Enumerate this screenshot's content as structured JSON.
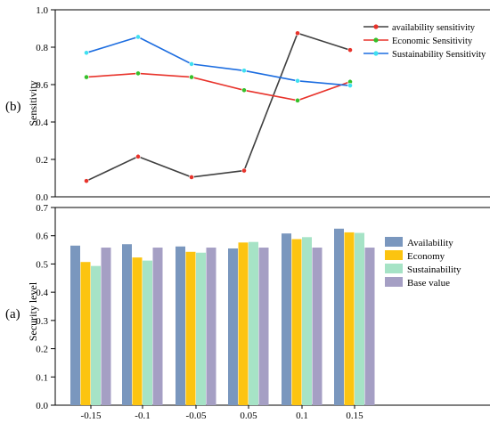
{
  "chart_data": [
    {
      "panel": "(b)",
      "type": "line",
      "ylabel": "Sensitivity",
      "ylim": [
        0,
        1.0
      ],
      "yticks": [
        "0.0",
        "0.2",
        "0.4",
        "0.6",
        "0.8",
        "1.0"
      ],
      "grid": false,
      "legend_position": "top-right",
      "series": [
        {
          "name": "availability sensitivity",
          "color": "#404040",
          "marker_color": "#e8332b",
          "values": [
            0.085,
            0.215,
            0.105,
            0.14,
            0.875,
            0.785
          ]
        },
        {
          "name": "Economic Sensitivity",
          "color": "#e8332b",
          "marker_color": "#35c02a",
          "values": [
            0.64,
            0.66,
            0.64,
            0.57,
            0.515,
            0.615
          ]
        },
        {
          "name": "Sustainability Sensitivity",
          "color": "#1c6de0",
          "marker_color": "#3fe0f0",
          "values": [
            0.77,
            0.855,
            0.71,
            0.675,
            0.62,
            0.595
          ]
        }
      ]
    },
    {
      "panel": "(a)",
      "type": "bar",
      "ylabel": "Security level",
      "ylim": [
        0,
        0.7
      ],
      "yticks": [
        "0.0",
        "0.1",
        "0.2",
        "0.3",
        "0.4",
        "0.5",
        "0.6",
        "0.7"
      ],
      "categories": [
        "-0.15",
        "-0.1",
        "-0.05",
        "0.05",
        "0.1",
        "0.15"
      ],
      "grid": false,
      "legend_position": "right",
      "series": [
        {
          "name": "Availability",
          "color": "#7a97be",
          "values": [
            0.565,
            0.57,
            0.562,
            0.555,
            0.608,
            0.625
          ]
        },
        {
          "name": "Economy",
          "color": "#fcc410",
          "values": [
            0.507,
            0.523,
            0.543,
            0.576,
            0.588,
            0.612
          ]
        },
        {
          "name": "Sustainability",
          "color": "#a6e3c6",
          "values": [
            0.493,
            0.512,
            0.54,
            0.578,
            0.595,
            0.61
          ]
        },
        {
          "name": "Base value",
          "color": "#a59fc4",
          "values": [
            0.558,
            0.558,
            0.558,
            0.558,
            0.558,
            0.558
          ]
        }
      ]
    }
  ]
}
